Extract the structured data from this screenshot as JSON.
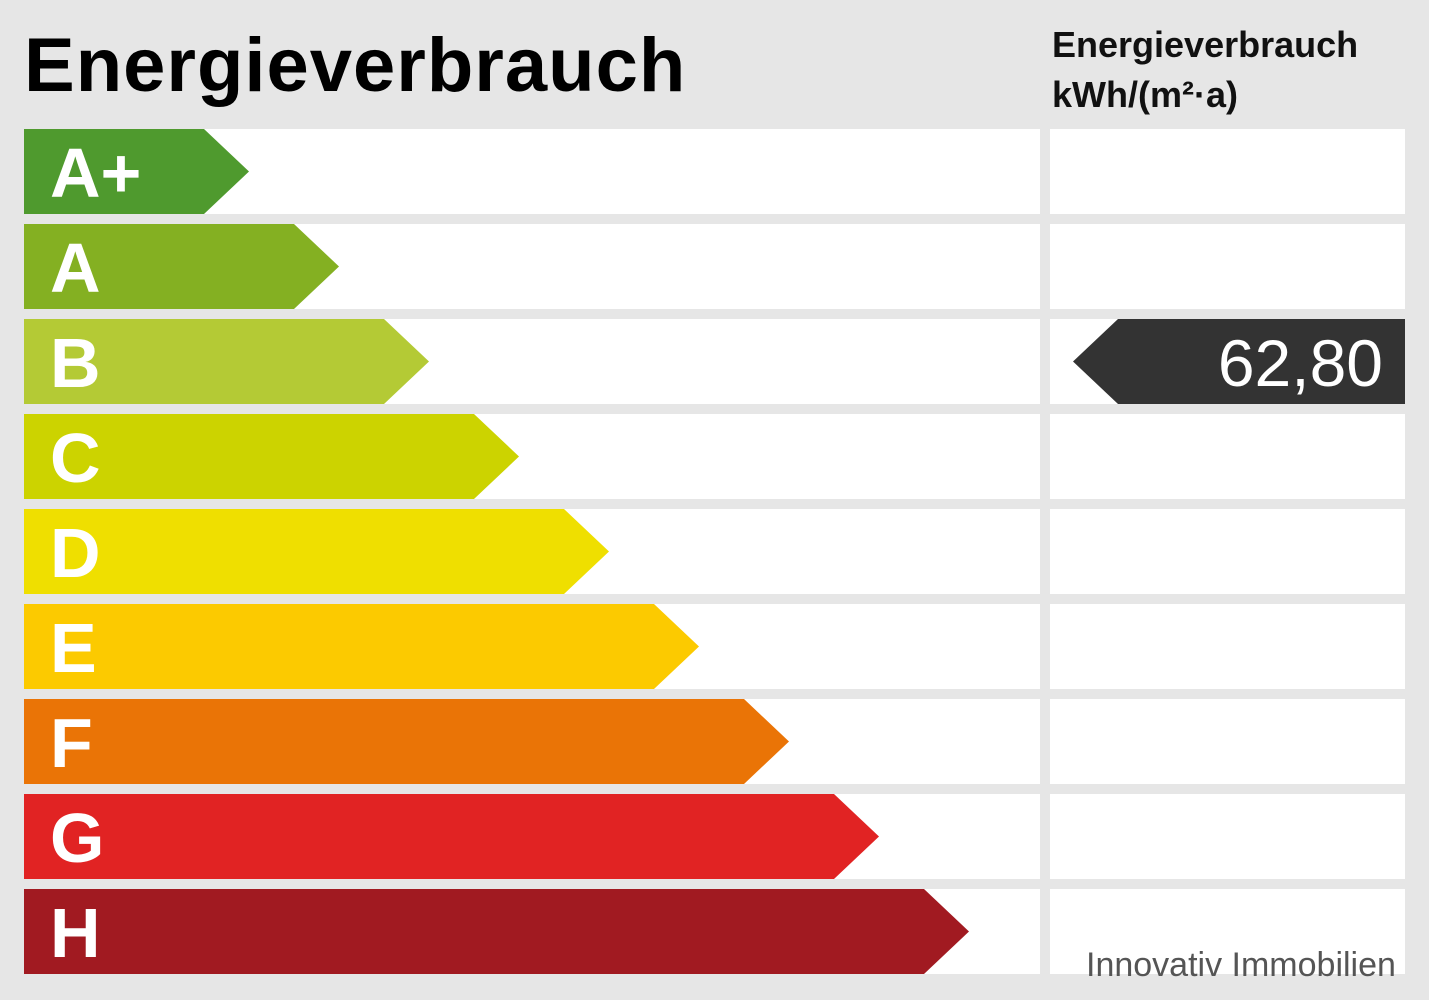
{
  "title": "Energieverbrauch",
  "column_header": {
    "line1": "Energieverbrauch",
    "line2": "kWh/(m²·a)"
  },
  "classes": [
    {
      "label": "A+",
      "color": "#4f9a2e"
    },
    {
      "label": "A",
      "color": "#84b022"
    },
    {
      "label": "B",
      "color": "#b4ca35"
    },
    {
      "label": "C",
      "color": "#ccd300"
    },
    {
      "label": "D",
      "color": "#efdf00"
    },
    {
      "label": "E",
      "color": "#fcca00"
    },
    {
      "label": "F",
      "color": "#ea7406"
    },
    {
      "label": "G",
      "color": "#e12323"
    },
    {
      "label": "H",
      "color": "#a11a21"
    }
  ],
  "indicator": {
    "value": "62,80",
    "class": "B",
    "color": "#333333"
  },
  "watermark": "Innovativ Immobilien"
}
